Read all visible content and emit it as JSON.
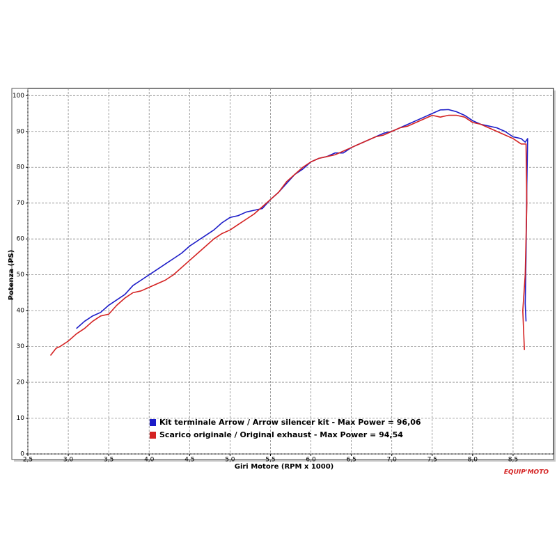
{
  "chart_data": {
    "type": "line",
    "x_label": "Giri Motore (RPM x 1000)",
    "y_label": "Potenza (PS)",
    "watermark": "EQUIP'MOTO",
    "xlim": [
      2.5,
      9.0
    ],
    "xticks": [
      {
        "value": 2.5,
        "label": "2,5"
      },
      {
        "value": 3.0,
        "label": "3,0"
      },
      {
        "value": 3.5,
        "label": "3,5"
      },
      {
        "value": 4.0,
        "label": "4,0"
      },
      {
        "value": 4.5,
        "label": "4,5"
      },
      {
        "value": 5.0,
        "label": "5,0"
      },
      {
        "value": 5.5,
        "label": "5,5"
      },
      {
        "value": 6.0,
        "label": "6,0"
      },
      {
        "value": 6.5,
        "label": "6,5"
      },
      {
        "value": 7.0,
        "label": "7,0"
      },
      {
        "value": 7.5,
        "label": "7,5"
      },
      {
        "value": 8.0,
        "label": "8,0"
      },
      {
        "value": 8.5,
        "label": "8,5"
      }
    ],
    "ylim": [
      0,
      102
    ],
    "yticks": [
      0,
      10,
      20,
      30,
      40,
      50,
      60,
      70,
      80,
      90,
      100
    ],
    "grid": true,
    "series": [
      {
        "name": "Kit terminale Arrow / Arrow silencer kit - Max Power = 96,06",
        "color": "#1c1cc8",
        "x": [
          3.1,
          3.2,
          3.3,
          3.4,
          3.5,
          3.6,
          3.7,
          3.8,
          3.9,
          4.0,
          4.1,
          4.2,
          4.3,
          4.4,
          4.5,
          4.6,
          4.7,
          4.8,
          4.9,
          5.0,
          5.1,
          5.2,
          5.3,
          5.4,
          5.5,
          5.6,
          5.7,
          5.8,
          5.9,
          6.0,
          6.1,
          6.2,
          6.3,
          6.4,
          6.5,
          6.6,
          6.7,
          6.8,
          6.9,
          7.0,
          7.1,
          7.2,
          7.3,
          7.4,
          7.5,
          7.6,
          7.7,
          7.8,
          7.9,
          8.0,
          8.1,
          8.2,
          8.3,
          8.4,
          8.5,
          8.6,
          8.65,
          8.68,
          8.67,
          8.66,
          8.65,
          8.66
        ],
        "values": [
          35,
          37,
          38.5,
          39.5,
          41.5,
          43,
          44.5,
          47,
          48.5,
          50,
          51.5,
          53,
          54.5,
          56,
          58,
          59.5,
          61,
          62.5,
          64.5,
          66,
          66.5,
          67.5,
          68,
          68.5,
          71,
          73,
          75.5,
          78,
          79.5,
          81.5,
          82.5,
          83,
          84,
          84,
          85.5,
          86.5,
          87.5,
          88.5,
          89.5,
          90,
          91,
          92,
          93,
          94,
          95,
          96,
          96.1,
          95.5,
          94.5,
          93,
          92,
          91.5,
          91,
          90,
          88.5,
          88,
          87,
          88,
          75,
          55,
          42,
          37
        ]
      },
      {
        "name": "Scarico originale / Original exhaust - Max Power = 94,54",
        "color": "#d42222",
        "x": [
          2.78,
          2.85,
          2.9,
          3.0,
          3.1,
          3.2,
          3.3,
          3.4,
          3.5,
          3.6,
          3.7,
          3.8,
          3.9,
          4.0,
          4.1,
          4.2,
          4.3,
          4.4,
          4.5,
          4.6,
          4.7,
          4.8,
          4.9,
          5.0,
          5.1,
          5.2,
          5.3,
          5.4,
          5.5,
          5.6,
          5.7,
          5.8,
          5.9,
          6.0,
          6.1,
          6.2,
          6.3,
          6.4,
          6.5,
          6.6,
          6.7,
          6.8,
          6.9,
          7.0,
          7.1,
          7.2,
          7.3,
          7.4,
          7.5,
          7.6,
          7.7,
          7.8,
          7.9,
          8.0,
          8.1,
          8.2,
          8.3,
          8.4,
          8.5,
          8.6,
          8.66,
          8.67,
          8.65,
          8.62,
          8.64
        ],
        "values": [
          27.5,
          29.5,
          30,
          31.5,
          33.5,
          35,
          37,
          38.5,
          39,
          41.5,
          43.5,
          45,
          45.5,
          46.5,
          47.5,
          48.5,
          50,
          52,
          54,
          56,
          58,
          60,
          61.5,
          62.5,
          64,
          65.5,
          67,
          69,
          71,
          73,
          76,
          78,
          80,
          81.5,
          82.5,
          83,
          83.5,
          84.5,
          85.5,
          86.5,
          87.5,
          88.5,
          89,
          90,
          91,
          91.5,
          92.5,
          93.5,
          94.5,
          94,
          94.5,
          94.5,
          94,
          92.5,
          92,
          91,
          90,
          89,
          88,
          86.5,
          86.5,
          70,
          50,
          40,
          29
        ]
      }
    ]
  }
}
